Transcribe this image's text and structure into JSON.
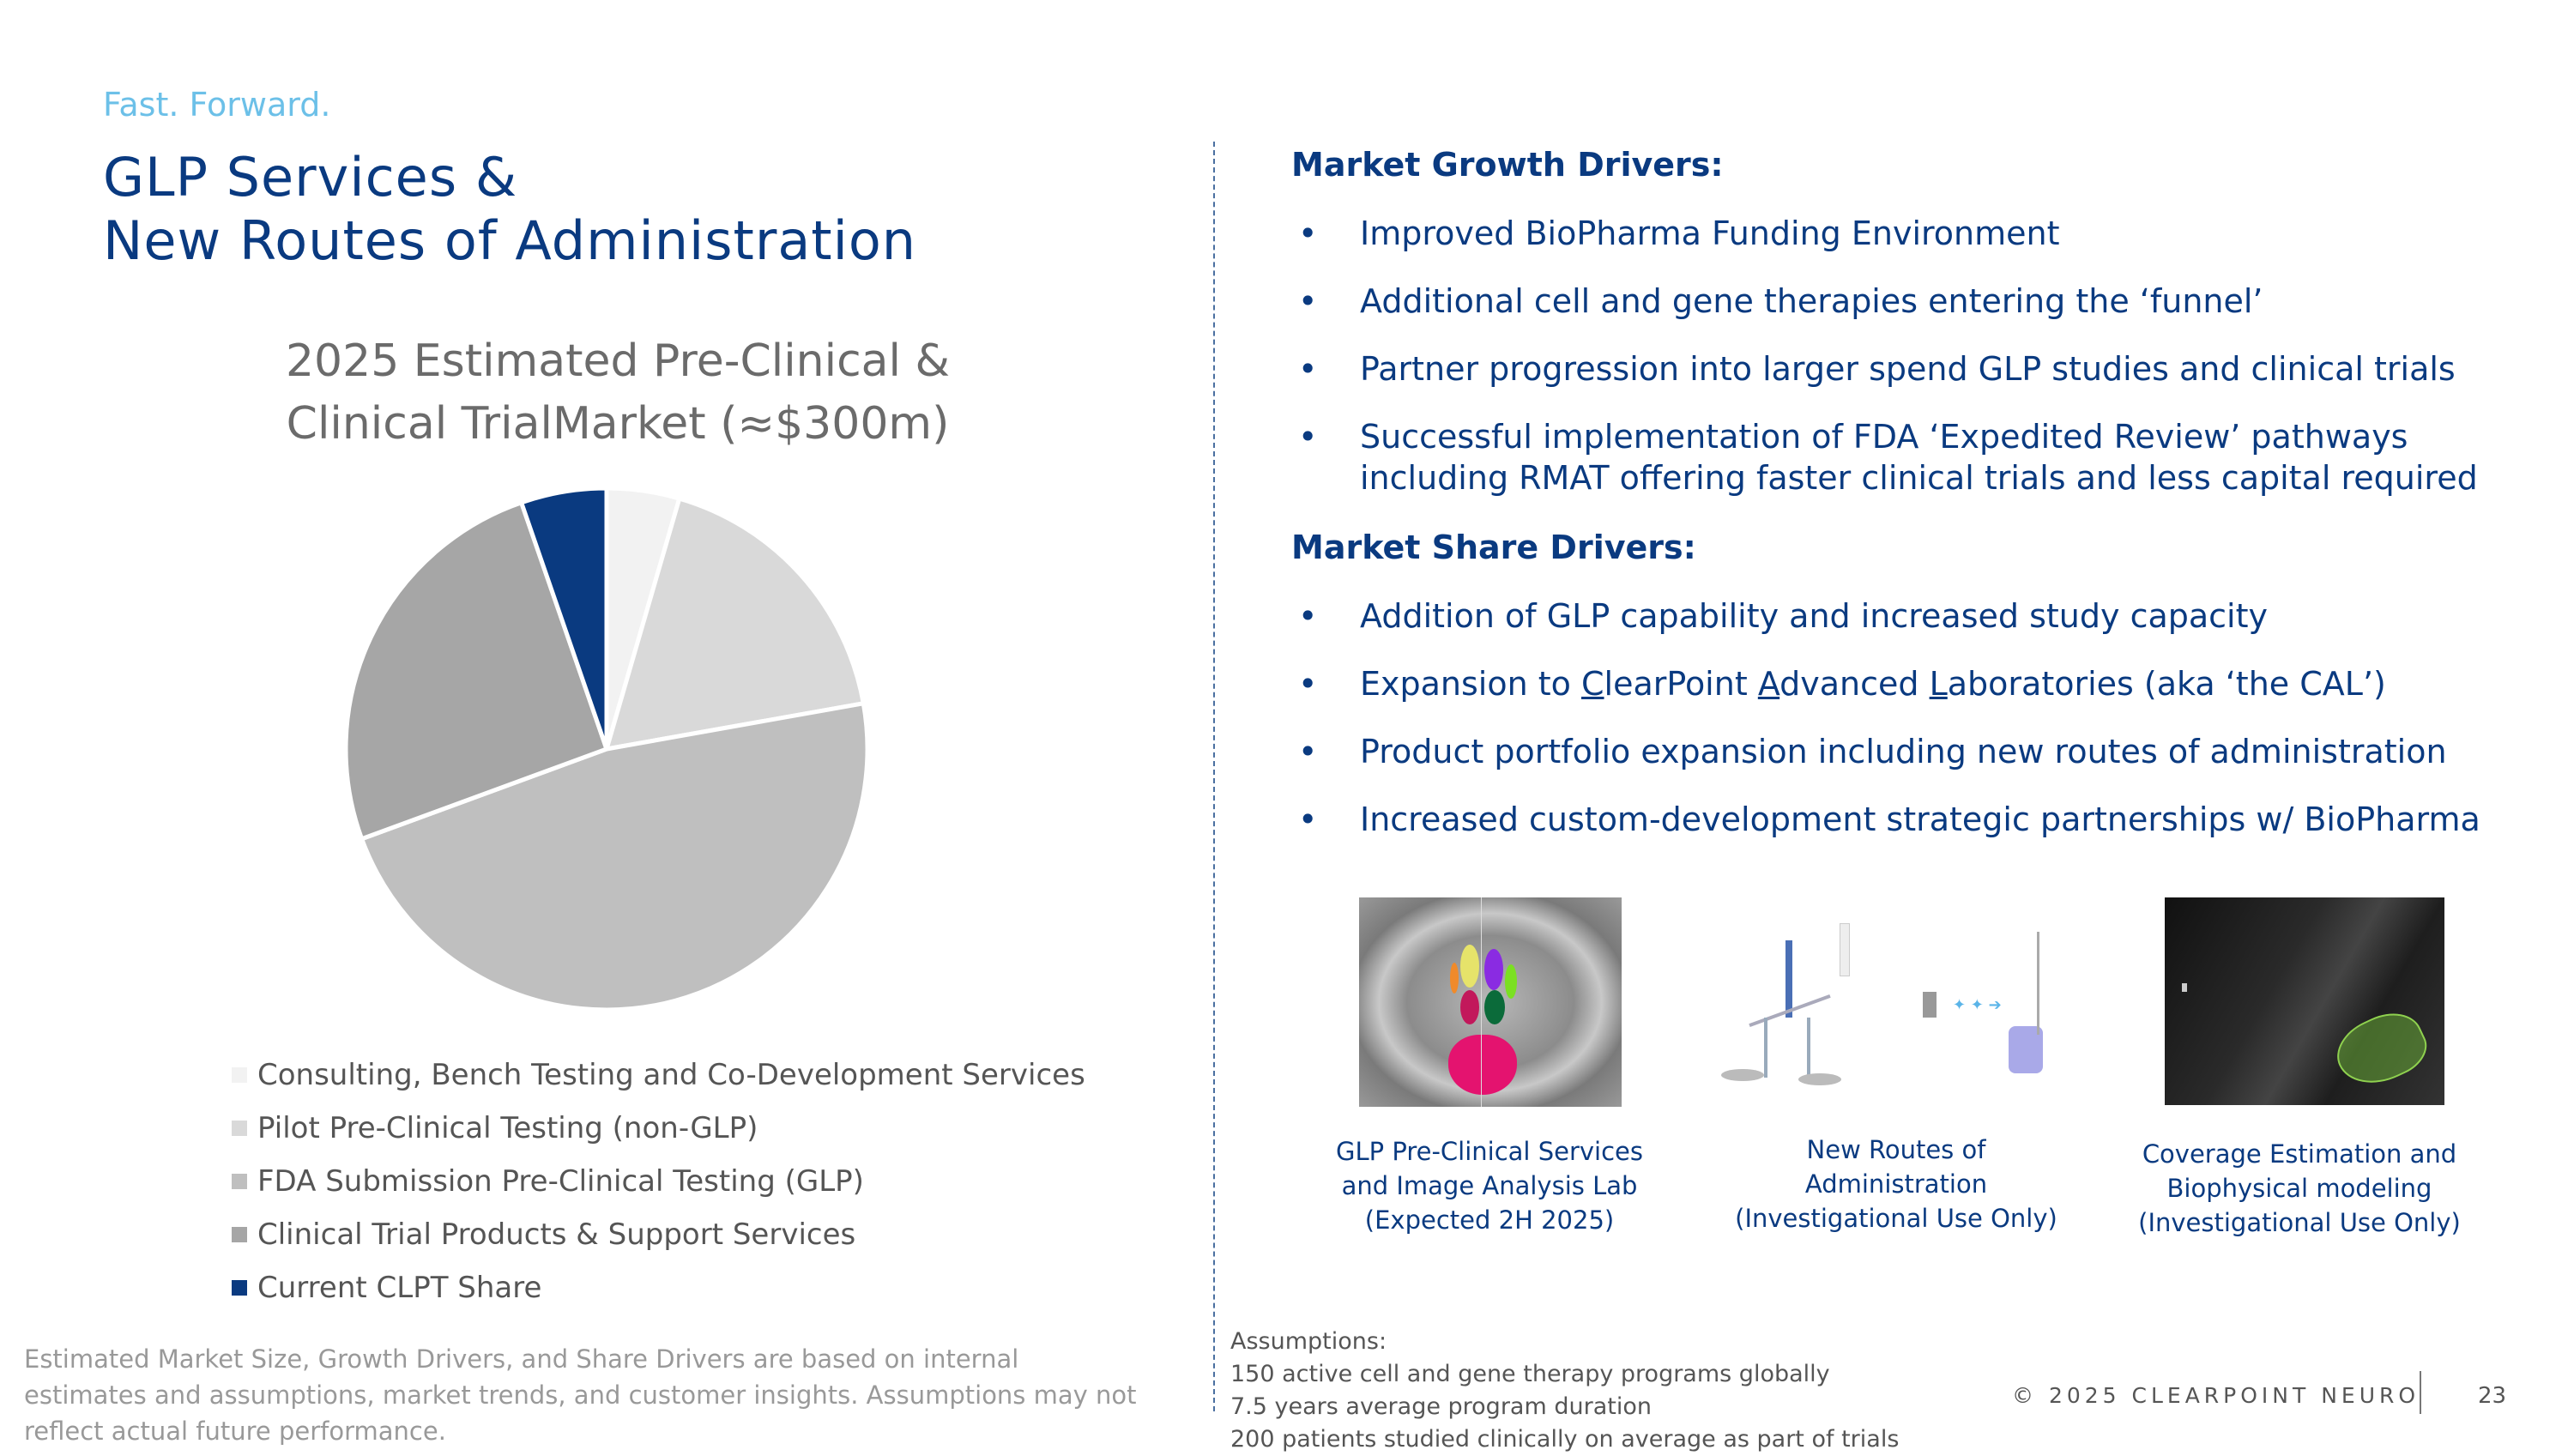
{
  "header": {
    "tagline": "Fast. Forward.",
    "title_line1": "GLP Services &",
    "title_line2": "New Routes of Administration"
  },
  "chart_data": {
    "type": "pie",
    "title_line1": "2025 Estimated Pre-Clinical &",
    "title_line2": "Clinical TrialMarket (≈$300m)",
    "categories": [
      "Consulting, Bench Testing and Co-Development Services",
      "Pilot Pre-Clinical Testing (non-GLP)",
      "FDA Submission Pre-Clinical Testing (GLP)",
      "Clinical Trial Products & Support Services",
      "Current CLPT Share"
    ],
    "values": [
      4.5,
      17.7,
      47.2,
      25.3,
      5.3
    ],
    "value_unit": "percent of market (estimated from slice angles)",
    "colors": [
      "#f2f2f2",
      "#d9d9d9",
      "#bfbfbf",
      "#a6a6a6",
      "#0a3a80"
    ],
    "legend_position": "bottom"
  },
  "footnote": "Estimated Market Size, Growth Drivers, and Share Drivers are based on internal estimates and assumptions, market trends, and customer insights.  Assumptions may not reflect actual future performance.",
  "growth": {
    "heading": "Market Growth Drivers:",
    "items": [
      "Improved BioPharma Funding Environment",
      "Additional cell and gene therapies entering the ‘funnel’",
      "Partner progression into larger spend GLP studies and clinical trials",
      "Successful implementation of FDA ‘Expedited Review’ pathways including RMAT offering faster clinical trials and less capital required"
    ]
  },
  "share": {
    "heading": "Market Share Drivers:",
    "items": [
      "Addition of GLP capability and increased study capacity",
      "Product portfolio expansion including new routes of administration",
      "Increased custom-development strategic partnerships w/ BioPharma"
    ],
    "cal_item": {
      "prefix": "Expansion to ",
      "c": "C",
      "c_rest": "learPoint ",
      "a": "A",
      "a_rest": "dvanced ",
      "l": "L",
      "l_rest": "aboratories (aka ‘the CAL’)"
    }
  },
  "bullet_char": "•",
  "captions": [
    {
      "l1": "GLP Pre-Clinical Services",
      "l2": "and Image Analysis Lab",
      "l3": "(Expected 2H 2025)"
    },
    {
      "l1": "New Routes of",
      "l2": "Administration",
      "l3": "(Investigational Use Only)"
    },
    {
      "l1": "Coverage Estimation and",
      "l2": "Biophysical modeling",
      "l3": "(Investigational Use Only)"
    }
  ],
  "assumptions": {
    "heading": "Assumptions:",
    "lines": [
      "150 active cell and gene therapy programs globally",
      "7.5 years average program duration",
      "200 patients studied clinically on average as part of trials"
    ]
  },
  "footer": {
    "copyright": "© 2025 CLEARPOINT NEURO",
    "page": "23"
  }
}
